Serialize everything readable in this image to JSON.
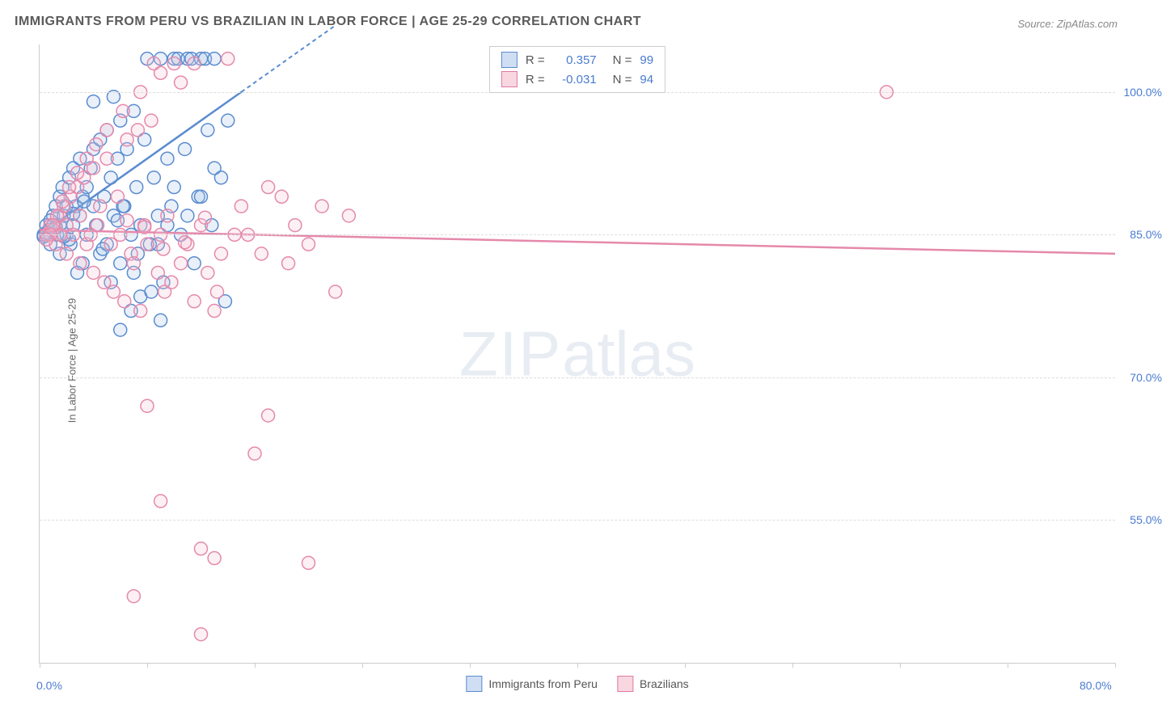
{
  "title": "IMMIGRANTS FROM PERU VS BRAZILIAN IN LABOR FORCE | AGE 25-29 CORRELATION CHART",
  "source": "Source: ZipAtlas.com",
  "watermark_zip": "ZIP",
  "watermark_rest": "atlas",
  "y_label": "In Labor Force | Age 25-29",
  "chart": {
    "type": "scatter",
    "xlim": [
      0,
      80
    ],
    "ylim": [
      40,
      105
    ],
    "y_ticks": [
      55,
      70,
      85,
      100
    ],
    "y_tick_labels": [
      "55.0%",
      "70.0%",
      "85.0%",
      "100.0%"
    ],
    "x_ticks": [
      0,
      8,
      16,
      24,
      32,
      40,
      48,
      56,
      64,
      72,
      80
    ],
    "x_tick_labels_shown": {
      "0": "0.0%",
      "80": "80.0%"
    },
    "grid_color": "#dddddd",
    "axis_color": "#cccccc",
    "background_color": "#ffffff",
    "marker_radius": 8,
    "marker_fill_opacity": 0.25,
    "marker_stroke_width": 1.5,
    "series": [
      {
        "name": "Immigrants from Peru",
        "color_stroke": "#5a8cd0",
        "color_fill": "#a8c4e8",
        "R": "0.357",
        "N": "99",
        "regression": {
          "x1": 0,
          "y1": 85,
          "x2": 15,
          "y2": 100,
          "extend_dashed_to_x": 22
        },
        "points": [
          [
            0.3,
            85
          ],
          [
            0.5,
            86
          ],
          [
            0.7,
            85.5
          ],
          [
            0.8,
            84
          ],
          [
            1,
            87
          ],
          [
            1,
            86
          ],
          [
            1.2,
            88
          ],
          [
            1.3,
            85
          ],
          [
            1.5,
            89
          ],
          [
            1.5,
            86
          ],
          [
            1.7,
            90
          ],
          [
            1.8,
            87
          ],
          [
            2,
            88
          ],
          [
            2,
            85
          ],
          [
            2.2,
            91
          ],
          [
            2.3,
            84
          ],
          [
            2.5,
            92
          ],
          [
            2.5,
            86
          ],
          [
            2.7,
            88
          ],
          [
            3,
            93
          ],
          [
            3,
            87
          ],
          [
            3.2,
            89
          ],
          [
            3.5,
            90
          ],
          [
            3.5,
            85
          ],
          [
            3.8,
            92
          ],
          [
            4,
            94
          ],
          [
            4,
            88
          ],
          [
            4.2,
            86
          ],
          [
            4.5,
            95
          ],
          [
            4.5,
            83
          ],
          [
            4.8,
            89
          ],
          [
            5,
            96
          ],
          [
            5,
            84
          ],
          [
            5.3,
            91
          ],
          [
            5.5,
            87
          ],
          [
            5.8,
            93
          ],
          [
            6,
            97
          ],
          [
            6,
            82
          ],
          [
            6.3,
            88
          ],
          [
            6.5,
            94
          ],
          [
            6.8,
            85
          ],
          [
            7,
            98
          ],
          [
            7,
            81
          ],
          [
            7.2,
            90
          ],
          [
            7.5,
            86
          ],
          [
            7.8,
            95
          ],
          [
            8,
            103.5
          ],
          [
            8.2,
            84
          ],
          [
            8.5,
            91
          ],
          [
            8.8,
            87
          ],
          [
            9,
            103.5
          ],
          [
            9.2,
            80
          ],
          [
            9.5,
            93
          ],
          [
            9.8,
            88
          ],
          [
            10,
            103.5
          ],
          [
            10.3,
            103.5
          ],
          [
            10.5,
            85
          ],
          [
            10.8,
            94
          ],
          [
            11,
            103.5
          ],
          [
            11.3,
            103.5
          ],
          [
            11.5,
            82
          ],
          [
            11.8,
            89
          ],
          [
            12,
            103.5
          ],
          [
            12.3,
            103.5
          ],
          [
            12.5,
            96
          ],
          [
            12.8,
            86
          ],
          [
            13,
            103.5
          ],
          [
            13.5,
            91
          ],
          [
            13.8,
            78
          ],
          [
            14,
            97
          ],
          [
            4,
            99
          ],
          [
            5.5,
            99.5
          ],
          [
            6.8,
            77
          ],
          [
            7.5,
            78.5
          ],
          [
            8.3,
            79
          ],
          [
            9,
            76
          ],
          [
            3.2,
            82
          ],
          [
            4.7,
            83.5
          ],
          [
            5.3,
            80
          ],
          [
            2.8,
            81
          ],
          [
            6,
            75
          ],
          [
            1.5,
            83
          ],
          [
            2.2,
            84.5
          ],
          [
            0.8,
            86.5
          ],
          [
            1.8,
            84.8
          ],
          [
            3.3,
            88.5
          ],
          [
            0.5,
            85.2
          ],
          [
            1.2,
            85.8
          ],
          [
            2.5,
            87.2
          ],
          [
            0.3,
            84.8
          ],
          [
            12,
            89
          ],
          [
            11,
            87
          ],
          [
            13,
            92
          ],
          [
            10,
            90
          ],
          [
            9.5,
            86
          ],
          [
            8.8,
            84
          ],
          [
            7.3,
            83
          ],
          [
            6.2,
            88
          ],
          [
            5.8,
            86.5
          ]
        ]
      },
      {
        "name": "Brazilians",
        "color_stroke": "#e589ab",
        "color_fill": "#f4c4d5",
        "R": "-0.031",
        "N": "94",
        "regression": {
          "x1": 0,
          "y1": 85.5,
          "x2": 80,
          "y2": 83
        },
        "points": [
          [
            0.5,
            85
          ],
          [
            0.8,
            86
          ],
          [
            1,
            85.5
          ],
          [
            1.2,
            84
          ],
          [
            1.5,
            87
          ],
          [
            1.5,
            85
          ],
          [
            1.8,
            88
          ],
          [
            2,
            86
          ],
          [
            2,
            83
          ],
          [
            2.3,
            89
          ],
          [
            2.5,
            85
          ],
          [
            2.8,
            90
          ],
          [
            3,
            82
          ],
          [
            3,
            87
          ],
          [
            3.3,
            91
          ],
          [
            3.5,
            84
          ],
          [
            3.8,
            85
          ],
          [
            4,
            92
          ],
          [
            4,
            81
          ],
          [
            4.3,
            86
          ],
          [
            4.5,
            88
          ],
          [
            4.8,
            80
          ],
          [
            5,
            93
          ],
          [
            5.3,
            84
          ],
          [
            5.5,
            79
          ],
          [
            5.8,
            89
          ],
          [
            6,
            85
          ],
          [
            6.3,
            78
          ],
          [
            6.5,
            95
          ],
          [
            6.8,
            83
          ],
          [
            7,
            82
          ],
          [
            7.3,
            96
          ],
          [
            7.5,
            77
          ],
          [
            7.8,
            86
          ],
          [
            8,
            84
          ],
          [
            8.3,
            97
          ],
          [
            8.5,
            103
          ],
          [
            8.8,
            81
          ],
          [
            9,
            85
          ],
          [
            9.3,
            79
          ],
          [
            9.5,
            87
          ],
          [
            9.8,
            80
          ],
          [
            10,
            103
          ],
          [
            10.5,
            82
          ],
          [
            11,
            84
          ],
          [
            11.5,
            78
          ],
          [
            12,
            86
          ],
          [
            12.5,
            81
          ],
          [
            13,
            77
          ],
          [
            13.5,
            83
          ],
          [
            14,
            103.5
          ],
          [
            15,
            88
          ],
          [
            15.5,
            85
          ],
          [
            16,
            62
          ],
          [
            17,
            90
          ],
          [
            18,
            89
          ],
          [
            19,
            86
          ],
          [
            20,
            84
          ],
          [
            21,
            88
          ],
          [
            22,
            79
          ],
          [
            23,
            87
          ],
          [
            8,
            67
          ],
          [
            12,
            52
          ],
          [
            17,
            66
          ],
          [
            9,
            57
          ],
          [
            13,
            51
          ],
          [
            20,
            50.5
          ],
          [
            12,
            43
          ],
          [
            7,
            47
          ],
          [
            63,
            100
          ],
          [
            9,
            102
          ],
          [
            10.5,
            101
          ],
          [
            11.5,
            103
          ],
          [
            7.5,
            100
          ],
          [
            6.2,
            98
          ],
          [
            5,
            96
          ],
          [
            4.2,
            94.5
          ],
          [
            3.5,
            93
          ],
          [
            2.8,
            91.5
          ],
          [
            2.2,
            90
          ],
          [
            1.7,
            88.5
          ],
          [
            1.3,
            87
          ],
          [
            1,
            86
          ],
          [
            0.8,
            85
          ],
          [
            0.5,
            84.5
          ],
          [
            6.5,
            86.5
          ],
          [
            7.8,
            85.8
          ],
          [
            9.2,
            83.5
          ],
          [
            10.8,
            84.2
          ],
          [
            12.3,
            86.8
          ],
          [
            14.5,
            85
          ],
          [
            16.5,
            83
          ],
          [
            18.5,
            82
          ],
          [
            13.2,
            79
          ]
        ]
      }
    ]
  },
  "legend_bottom": [
    {
      "label": "Immigrants from Peru",
      "swatch": "blue"
    },
    {
      "label": "Brazilians",
      "swatch": "pink"
    }
  ],
  "legend_top_rows": [
    {
      "swatch": "blue",
      "r_label": "R =",
      "r_val": "0.357",
      "n_label": "N =",
      "n_val": "99"
    },
    {
      "swatch": "pink",
      "r_label": "R =",
      "r_val": "-0.031",
      "n_label": "N =",
      "n_val": "94"
    }
  ]
}
